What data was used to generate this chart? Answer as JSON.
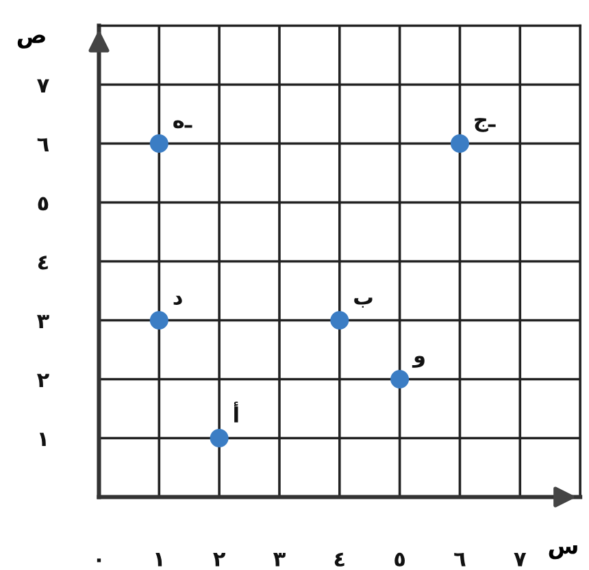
{
  "chart_data": {
    "type": "scatter",
    "xlabel": "س",
    "ylabel": "ص",
    "x": [
      2,
      4,
      6,
      1,
      1,
      5
    ],
    "values": [
      1,
      3,
      6,
      3,
      6,
      2
    ],
    "color": "#3b7dc4",
    "marker": "circle",
    "xlim": [
      0,
      8
    ],
    "ylim": [
      0,
      8
    ],
    "xticks": [
      {
        "value": 0,
        "label": "٠"
      },
      {
        "value": 1,
        "label": "١"
      },
      {
        "value": 2,
        "label": "٢"
      },
      {
        "value": 3,
        "label": "٣"
      },
      {
        "value": 4,
        "label": "٤"
      },
      {
        "value": 5,
        "label": "٥"
      },
      {
        "value": 6,
        "label": "٦"
      },
      {
        "value": 7,
        "label": "٧"
      }
    ],
    "yticks": [
      {
        "value": 1,
        "label": "١"
      },
      {
        "value": 2,
        "label": "٢"
      },
      {
        "value": 3,
        "label": "٣"
      },
      {
        "value": 4,
        "label": "٤"
      },
      {
        "value": 5,
        "label": "٥"
      },
      {
        "value": 6,
        "label": "٦"
      },
      {
        "value": 7,
        "label": "٧"
      }
    ],
    "grid": true,
    "annotations": [
      {
        "text": "أ",
        "x": 2,
        "y": 1
      },
      {
        "text": "ب",
        "x": 4,
        "y": 3
      },
      {
        "text": "جـ",
        "x": 6,
        "y": 6
      },
      {
        "text": "د",
        "x": 1,
        "y": 3
      },
      {
        "text": "هـ",
        "x": 1,
        "y": 6
      },
      {
        "text": "و",
        "x": 5,
        "y": 2
      }
    ]
  }
}
